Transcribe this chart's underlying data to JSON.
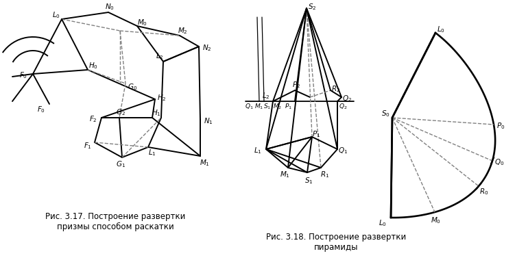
{
  "fig_width": 7.51,
  "fig_height": 3.96,
  "bg_color": "#ffffff",
  "line_color": "#000000",
  "text_color": "#000000",
  "caption1": "Рис. 3.17. Построение развертки\nпризмы способом раскатки",
  "caption2": "Рис. 3.18. Построение развертки\nпирамиды",
  "caption_fontsize": 8.5
}
